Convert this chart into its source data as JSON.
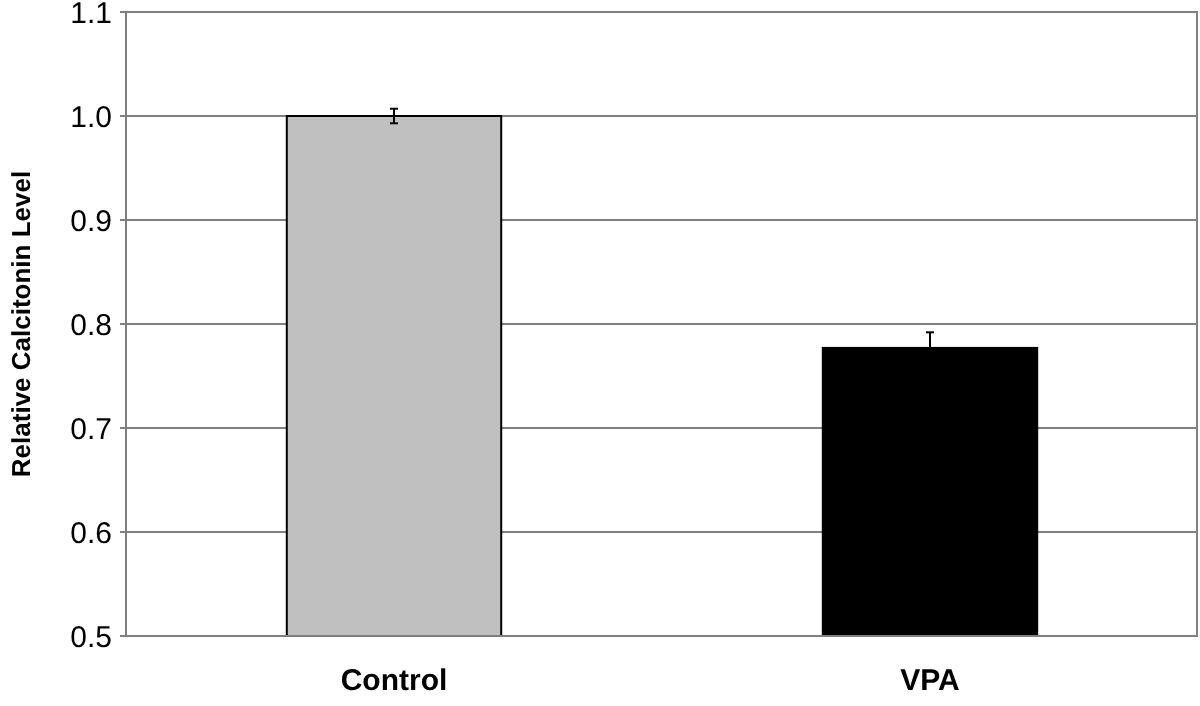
{
  "chart_data": {
    "type": "bar",
    "ylabel": "Relative Calcitonin Level",
    "categories": [
      "Control",
      "VPA"
    ],
    "values": [
      1.0,
      0.777
    ],
    "colors": [
      "#c0c0c0",
      "#000000"
    ],
    "errors": [
      0.007,
      0.015
    ],
    "ylim": [
      0.5,
      1.1
    ],
    "yticks": [
      {
        "value": 0.5,
        "label": "0.5"
      },
      0.6,
      0.7,
      0.8,
      0.9,
      {
        "value": 1.0,
        "label": "1.0"
      },
      1.1
    ],
    "grid": "y"
  }
}
